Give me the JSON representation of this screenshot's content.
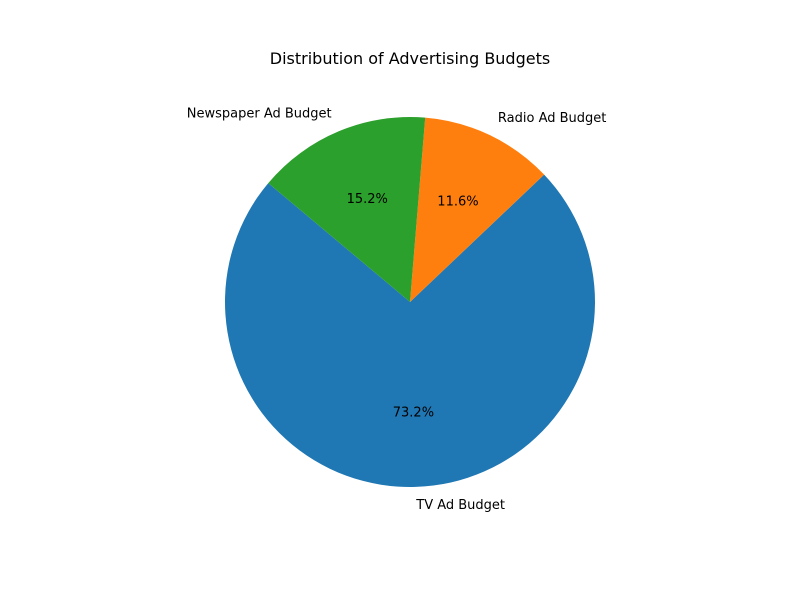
{
  "chart_data": {
    "type": "pie",
    "title": "Distribution of Advertising Budgets",
    "start_angle_deg": 140,
    "direction": "counterclockwise",
    "slices": [
      {
        "label": "TV Ad Budget",
        "percent_label": "73.2%",
        "value": 73.2,
        "color": "#1f77b4"
      },
      {
        "label": "Radio Ad Budget",
        "percent_label": "11.6%",
        "value": 11.6,
        "color": "#ff7f0e"
      },
      {
        "label": "Newspaper Ad Budget",
        "percent_label": "15.2%",
        "value": 15.2,
        "color": "#2ca02c"
      }
    ]
  }
}
